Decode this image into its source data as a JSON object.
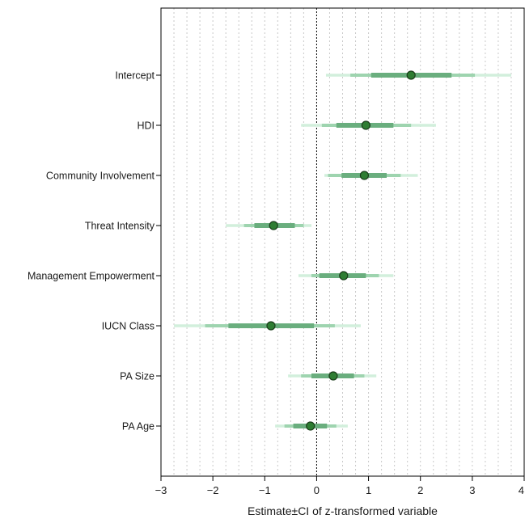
{
  "chart_data": {
    "type": "forest",
    "xlabel": "Estimate±CI of z-transformed variable",
    "xlim": [
      -3,
      4
    ],
    "xticks": [
      -3,
      -2,
      -1,
      0,
      1,
      2,
      3,
      4
    ],
    "xtick_labels": [
      "−3",
      "−2",
      "−1",
      "0",
      "1",
      "2",
      "3",
      "4"
    ],
    "grid_step": 0.25,
    "reference_line": 0,
    "intervals": [
      "50%",
      "80%",
      "95%"
    ],
    "colors": {
      "point_fill": "#2e7d32",
      "point_stroke": "#1b3d1b",
      "ci_50": "#6aae7e",
      "ci_80": "#9ed4af",
      "ci_95": "#d2efdc",
      "grid": "#c8c8c8",
      "frame": "#000000"
    },
    "variables": [
      {
        "label": "Intercept",
        "estimate": 1.82,
        "ci50": [
          1.05,
          2.6
        ],
        "ci80": [
          0.65,
          3.05
        ],
        "ci95": [
          0.18,
          3.75
        ]
      },
      {
        "label": "HDI",
        "estimate": 0.95,
        "ci50": [
          0.38,
          1.48
        ],
        "ci80": [
          0.1,
          1.82
        ],
        "ci95": [
          -0.3,
          2.3
        ]
      },
      {
        "label": "Community Involvement",
        "estimate": 0.92,
        "ci50": [
          0.48,
          1.35
        ],
        "ci80": [
          0.22,
          1.62
        ],
        "ci95": [
          0.15,
          1.95
        ]
      },
      {
        "label": "Threat Intensity",
        "estimate": -0.83,
        "ci50": [
          -1.2,
          -0.42
        ],
        "ci80": [
          -1.4,
          -0.25
        ],
        "ci95": [
          -1.75,
          -0.1
        ]
      },
      {
        "label": "Management Empowerment",
        "estimate": 0.52,
        "ci50": [
          0.05,
          0.95
        ],
        "ci80": [
          -0.1,
          1.2
        ],
        "ci95": [
          -0.35,
          1.48
        ]
      },
      {
        "label": "IUCN Class",
        "estimate": -0.88,
        "ci50": [
          -1.7,
          -0.05
        ],
        "ci80": [
          -2.15,
          0.35
        ],
        "ci95": [
          -2.75,
          0.85
        ]
      },
      {
        "label": "PA Size",
        "estimate": 0.32,
        "ci50": [
          -0.1,
          0.72
        ],
        "ci80": [
          -0.3,
          0.92
        ],
        "ci95": [
          -0.55,
          1.15
        ]
      },
      {
        "label": "PA Age",
        "estimate": -0.12,
        "ci50": [
          -0.45,
          0.2
        ],
        "ci80": [
          -0.62,
          0.38
        ],
        "ci95": [
          -0.8,
          0.6
        ]
      }
    ]
  }
}
